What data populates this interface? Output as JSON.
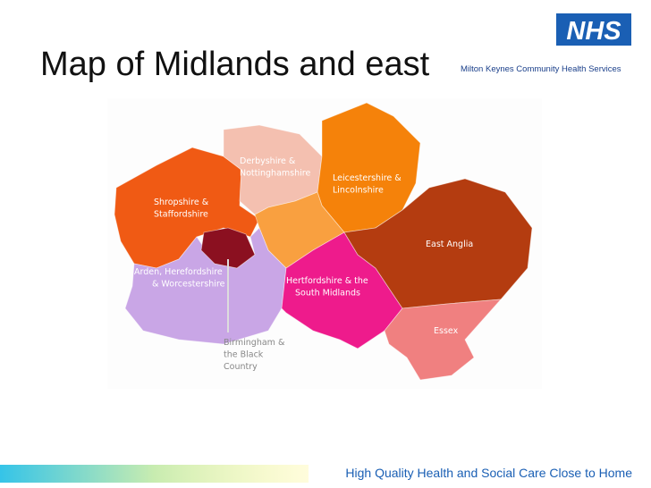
{
  "header": {
    "title": "Map of Midlands and east",
    "logo": "NHS",
    "organisation": "Milton Keynes Community Health Services"
  },
  "map": {
    "regions": [
      {
        "label": [
          "Derbyshire &",
          "Nottinghamshire"
        ]
      },
      {
        "label": [
          "Leicestershire &",
          "Lincolnshire"
        ]
      },
      {
        "label": [
          "Shropshire &",
          "Staffordshire"
        ]
      },
      {
        "label": [
          "Arden, Herefordshire",
          "& Worcestershire"
        ]
      },
      {
        "label": [
          "Hertfordshire & the",
          "South Midlands"
        ]
      },
      {
        "label": [
          "East Anglia"
        ]
      },
      {
        "label": [
          "Essex"
        ]
      },
      {
        "label": [
          "Birmingham &",
          "the Black",
          "Country"
        ]
      }
    ]
  },
  "footer": {
    "tagline": "High Quality Health and Social Care Close to Home"
  }
}
